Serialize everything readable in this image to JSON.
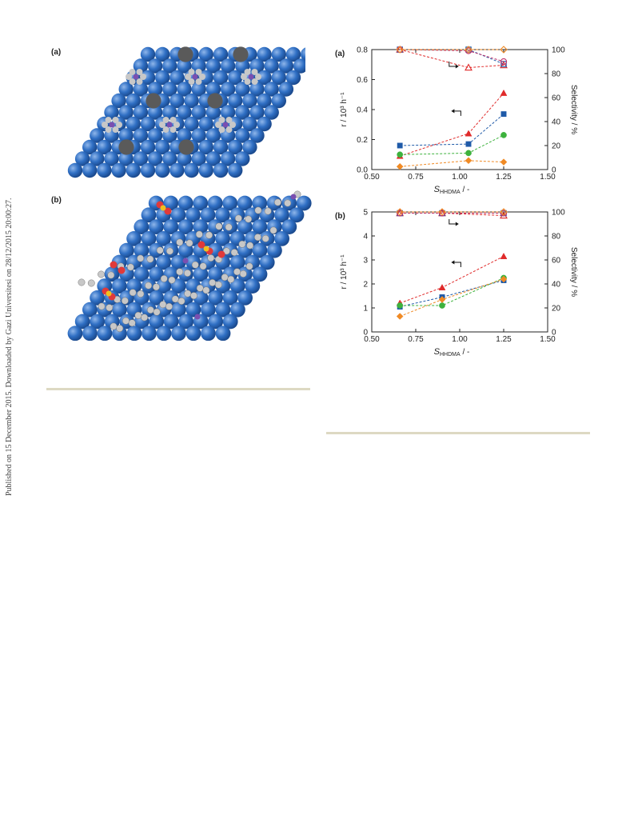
{
  "sidebar": {
    "published_note": "Published on 15 December 2015. Downloaded by Gazi Universitesi on 28/12/2015 20:00:27."
  },
  "left_figure": {
    "panel_a_label": "(a)",
    "panel_b_label": "(b)"
  },
  "colors": {
    "surface_atom": "#2f6fc4",
    "dark_atom": "#5a5a5a",
    "adsorbate_atom": "#c8c8c8",
    "nitrogen_atom": "#7a4fb0",
    "oxygen_atom": "#e03a3a",
    "sulfur_atom": "#f0c020",
    "rule": "#ddd9c3"
  },
  "chart_data": [
    {
      "type": "scatter",
      "panel_label": "(a)",
      "xlabel_main": "S",
      "xlabel_sub": "HHDMA",
      "xlabel_suffix": " / -",
      "ylabel": "r / 10³ h⁻¹",
      "y2label": "Selectivity / %",
      "xlim": [
        0.5,
        1.5
      ],
      "ylim": [
        0,
        0.8
      ],
      "y2lim": [
        0,
        100
      ],
      "xticks": [
        "0.50",
        "0.75",
        "1.00",
        "1.25",
        "1.50"
      ],
      "yticks": [
        "0.0",
        "0.2",
        "0.4",
        "0.6",
        "0.8"
      ],
      "y2ticks": [
        "0",
        "20",
        "40",
        "60",
        "80",
        "100"
      ],
      "rate_series": [
        {
          "marker": "triangle",
          "color": "#e02a2a",
          "x": [
            0.66,
            1.05,
            1.25
          ],
          "y": [
            0.09,
            0.24,
            0.51
          ]
        },
        {
          "marker": "square",
          "color": "#1f5aa8",
          "x": [
            0.66,
            1.05,
            1.25
          ],
          "y": [
            0.16,
            0.17,
            0.37
          ]
        },
        {
          "marker": "circle",
          "color": "#3db23d",
          "x": [
            0.66,
            1.05,
            1.25
          ],
          "y": [
            0.1,
            0.11,
            0.23
          ]
        },
        {
          "marker": "diamond",
          "color": "#f08a24",
          "x": [
            0.66,
            1.05,
            1.25
          ],
          "y": [
            0.02,
            0.06,
            0.05
          ]
        }
      ],
      "selectivity_series": [
        {
          "marker": "triangle-open",
          "color": "#e02a2a",
          "x": [
            0.66,
            1.05,
            1.25
          ],
          "y": [
            100,
            85,
            87
          ]
        },
        {
          "marker": "square-open",
          "color": "#1f5aa8",
          "x": [
            0.66,
            1.05,
            1.25
          ],
          "y": [
            100,
            100,
            88
          ]
        },
        {
          "marker": "circle-open",
          "color": "#c0306a",
          "x": [
            0.66,
            1.05,
            1.25
          ],
          "y": [
            100,
            99,
            90
          ]
        },
        {
          "marker": "diamond-open",
          "color": "#f08a24",
          "x": [
            0.66,
            1.05,
            1.25
          ],
          "y": [
            100,
            100,
            100
          ]
        }
      ],
      "grid": false
    },
    {
      "type": "scatter",
      "panel_label": "(b)",
      "xlabel_main": "S",
      "xlabel_sub": "HHDMA",
      "xlabel_suffix": " / -",
      "ylabel": "r / 10³ h⁻¹",
      "y2label": "Selectivity / %",
      "xlim": [
        0.5,
        1.5
      ],
      "ylim": [
        0,
        5
      ],
      "y2lim": [
        0,
        100
      ],
      "xticks": [
        "0.50",
        "0.75",
        "1.00",
        "1.25",
        "1.50"
      ],
      "yticks": [
        "0",
        "1",
        "2",
        "3",
        "4",
        "5"
      ],
      "y2ticks": [
        "0",
        "20",
        "40",
        "60",
        "80",
        "100"
      ],
      "rate_series": [
        {
          "marker": "triangle",
          "color": "#e02a2a",
          "x": [
            0.66,
            0.9,
            1.25
          ],
          "y": [
            1.2,
            1.85,
            3.15
          ]
        },
        {
          "marker": "square",
          "color": "#1f5aa8",
          "x": [
            0.66,
            0.9,
            1.25
          ],
          "y": [
            1.05,
            1.45,
            2.15
          ]
        },
        {
          "marker": "circle",
          "color": "#3db23d",
          "x": [
            0.66,
            0.9,
            1.25
          ],
          "y": [
            1.1,
            1.1,
            2.25
          ]
        },
        {
          "marker": "diamond",
          "color": "#f08a24",
          "x": [
            0.66,
            0.9,
            1.25
          ],
          "y": [
            0.65,
            1.35,
            2.2
          ]
        }
      ],
      "selectivity_series": [
        {
          "marker": "triangle-open",
          "color": "#e02a2a",
          "x": [
            0.66,
            0.9,
            1.25
          ],
          "y": [
            99,
            99,
            97
          ]
        },
        {
          "marker": "square-open",
          "color": "#1f5aa8",
          "x": [
            0.66,
            0.9,
            1.25
          ],
          "y": [
            99,
            99,
            99
          ]
        },
        {
          "marker": "circle-open",
          "color": "#c0306a",
          "x": [
            0.66,
            0.9,
            1.25
          ],
          "y": [
            99,
            99,
            99
          ]
        },
        {
          "marker": "diamond-open",
          "color": "#f08a24",
          "x": [
            0.66,
            0.9,
            1.25
          ],
          "y": [
            100,
            100,
            100
          ]
        }
      ],
      "grid": false
    }
  ]
}
